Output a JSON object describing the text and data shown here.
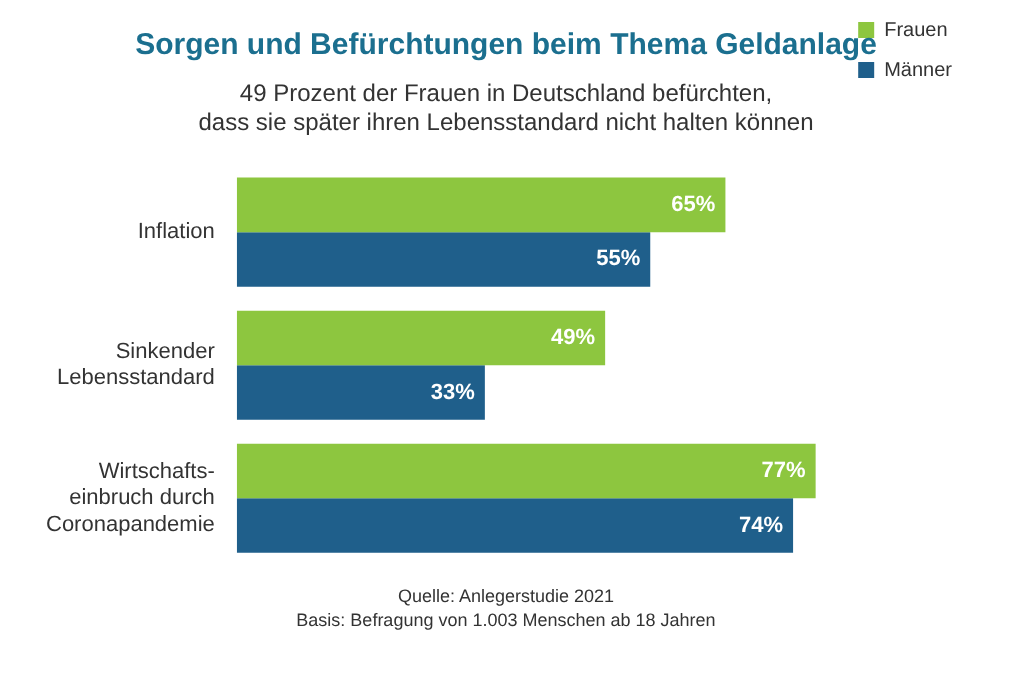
{
  "chart_data": {
    "type": "bar",
    "orientation": "horizontal",
    "title": "Sorgen und Befürchtungen beim Thema Geldanlage",
    "subtitle": "49 Prozent der Frauen in Deutschland befürchten,\ndass sie später ihren Lebensstandard nicht halten können",
    "categories": [
      "Inflation",
      "Sinkender\nLebensstandard",
      "Wirtschafts-\neinbruch durch\nCoronapandemie"
    ],
    "series": [
      {
        "name": "Frauen",
        "color": "#8dc63f",
        "values": [
          65,
          49,
          77
        ],
        "value_labels": [
          "65%",
          "49%",
          "77%"
        ]
      },
      {
        "name": "Männer",
        "color": "#1f5f8b",
        "values": [
          55,
          33,
          74
        ],
        "value_labels": [
          "55%",
          "33%",
          "74%"
        ]
      }
    ],
    "legend": "top right",
    "tick_labels": "y",
    "grid": false,
    "annotations": [
      "Quelle: Anlegerstudie 2021",
      "Basis: Befragung von 1.003 Menschen ab 18 Jahren"
    ]
  }
}
